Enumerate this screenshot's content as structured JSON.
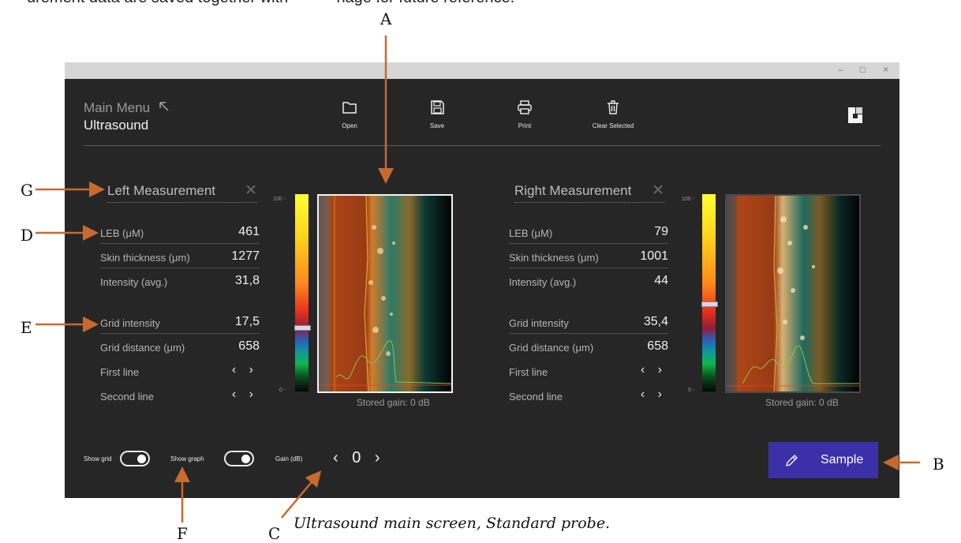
{
  "figure": {
    "top_caption_left": "urement data are saved together with",
    "top_caption_right": "nage for future reference.",
    "caption": "Ultrasound main screen, Standard probe.",
    "callouts": {
      "A": "A",
      "B": "B",
      "C": "C",
      "D": "D",
      "E": "E",
      "F": "F",
      "G": "G"
    }
  },
  "app": {
    "main_menu": "Main Menu",
    "page": "Ultrasound",
    "window_controls": {
      "minimize": "–",
      "maximize": "□",
      "close": "×"
    },
    "toolbar": [
      {
        "label": "Open",
        "icon": "folder-icon"
      },
      {
        "label": "Save",
        "icon": "save-icon"
      },
      {
        "label": "Print",
        "icon": "printer-icon"
      },
      {
        "label": "Clear Selected",
        "icon": "trash-icon"
      }
    ]
  },
  "left": {
    "title": "Left Measurement",
    "close": "✕",
    "leb_label": "LEB (μM)",
    "leb_value": "461",
    "skin_label": "Skin thickness (μm)",
    "skin_value": "1277",
    "intensity_label": "Intensity (avg.)",
    "intensity_value": "31,8",
    "grid_intensity_label": "Grid intensity",
    "grid_intensity_value": "17,5",
    "grid_distance_label": "Grid distance (μm)",
    "grid_distance_value": "658",
    "first_line_label": "First line",
    "second_line_label": "Second line",
    "scale_max": "100 -",
    "scale_min": "0 -",
    "stored_gain": "Stored gain: 0 dB"
  },
  "right": {
    "title": "Right Measurement",
    "close": "✕",
    "leb_label": "LEB (μM)",
    "leb_value": "79",
    "skin_label": "Skin thickness (μm)",
    "skin_value": "1001",
    "intensity_label": "Intensity (avg.)",
    "intensity_value": "44",
    "grid_intensity_label": "Grid intensity",
    "grid_intensity_value": "35,4",
    "grid_distance_label": "Grid distance (μm)",
    "grid_distance_value": "658",
    "first_line_label": "First line",
    "second_line_label": "Second line",
    "scale_max": "100 -",
    "scale_min": "0 -",
    "stored_gain": "Stored gain: 0 dB"
  },
  "bottom": {
    "show_grid": "Show grid",
    "show_graph": "Show graph",
    "gain_label": "Gain (dB)",
    "gain_prev": "‹",
    "gain_value": "0",
    "gain_next": "›",
    "sample": "Sample"
  },
  "nav_glyphs": "‹ ›",
  "colors": {
    "window_bg": "#262626",
    "accent": "#3b30a8",
    "callout_arrow": "#c8692e"
  }
}
